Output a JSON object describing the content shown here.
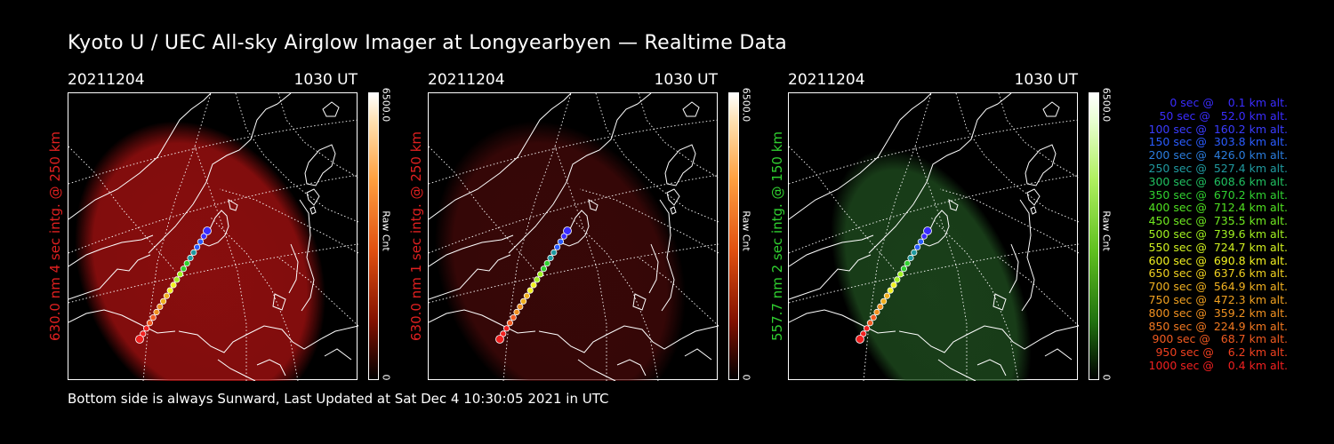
{
  "title": "Kyoto U / UEC All-sky Airglow Imager at Longyearbyen — Realtime Data",
  "footer": "Bottom side is always Sunward, Last Updated at Sat Dec  4 10:30:05 2021 in UTC",
  "panels": [
    {
      "date": "20211204",
      "time": "1030 UT",
      "ylabel": "630.0 nm 4 sec intg. @ 250 km",
      "ylabel_color": "#e02020",
      "cbar_max": "6500.0",
      "cbar_unit": "Raw Cnt",
      "cbar_min": "0",
      "glow_color": "#a01010",
      "glow_opacity": 0.85,
      "colormap": "red"
    },
    {
      "date": "20211204",
      "time": "1030 UT",
      "ylabel": "630.0 nm 1 sec intg. @ 250 km",
      "ylabel_color": "#e02020",
      "cbar_max": "6500.0",
      "cbar_unit": "Raw Cnt",
      "cbar_min": "0",
      "glow_color": "#4a0a0a",
      "glow_opacity": 0.75,
      "colormap": "red"
    },
    {
      "date": "20211204",
      "time": "1030 UT",
      "ylabel": "557.7 nm 2 sec intg. @ 150 km",
      "ylabel_color": "#30d030",
      "cbar_max": "6500.0",
      "cbar_unit": "Raw Cnt",
      "cbar_min": "0",
      "glow_color": "#1e4a1e",
      "glow_opacity": 0.85,
      "colormap": "green"
    }
  ],
  "legend": [
    {
      "text": "   0 sec @    0.1 km alt.",
      "color": "#3a2cff"
    },
    {
      "text": "  50 sec @   52.0 km alt.",
      "color": "#3a2cff"
    },
    {
      "text": " 100 sec @  160.2 km alt.",
      "color": "#3a3cff"
    },
    {
      "text": " 150 sec @  303.8 km alt.",
      "color": "#2a5cff"
    },
    {
      "text": " 200 sec @  426.0 km alt.",
      "color": "#2a7cdc"
    },
    {
      "text": " 250 sec @  527.4 km alt.",
      "color": "#209aa0"
    },
    {
      "text": " 300 sec @  608.6 km alt.",
      "color": "#20c060"
    },
    {
      "text": " 350 sec @  670.2 km alt.",
      "color": "#30d030"
    },
    {
      "text": " 400 sec @  712.4 km alt.",
      "color": "#50e020"
    },
    {
      "text": " 450 sec @  735.5 km alt.",
      "color": "#70e820"
    },
    {
      "text": " 500 sec @  739.6 km alt.",
      "color": "#a0f020"
    },
    {
      "text": " 550 sec @  724.7 km alt.",
      "color": "#d0f020"
    },
    {
      "text": " 600 sec @  690.8 km alt.",
      "color": "#f0f020"
    },
    {
      "text": " 650 sec @  637.6 km alt.",
      "color": "#f0d020"
    },
    {
      "text": " 700 sec @  564.9 km alt.",
      "color": "#f0b020"
    },
    {
      "text": " 750 sec @  472.3 km alt.",
      "color": "#f0a020"
    },
    {
      "text": " 800 sec @  359.2 km alt.",
      "color": "#f09020"
    },
    {
      "text": " 850 sec @  224.9 km alt.",
      "color": "#f07820"
    },
    {
      "text": " 900 sec @   68.7 km alt.",
      "color": "#f05a20"
    },
    {
      "text": " 950 sec @    6.2 km alt.",
      "color": "#f04020"
    },
    {
      "text": "1000 sec @    0.4 km alt.",
      "color": "#f02020"
    }
  ]
}
